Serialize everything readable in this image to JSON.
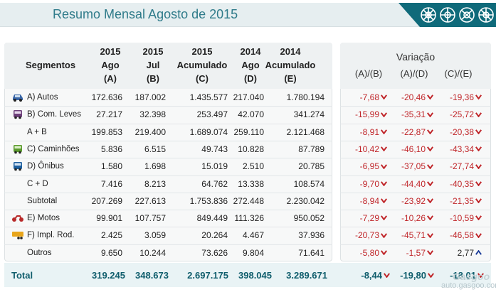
{
  "header": {
    "title": "Resumo Mensal Agosto de 2015"
  },
  "chart_data": {
    "type": "table",
    "title": "Resumo Mensal Agosto de 2015",
    "segment_header": "Segmentos",
    "columns": [
      {
        "l1": "2015",
        "l2": "Ago",
        "l3": "(A)"
      },
      {
        "l1": "2015",
        "l2": "Jul",
        "l3": "(B)"
      },
      {
        "l1": "2015",
        "l2": "Acumulado",
        "l3": "(C)"
      },
      {
        "l1": "2014",
        "l2": "Ago",
        "l3": "(D)"
      },
      {
        "l1": "2014",
        "l2": "Acumulado",
        "l3": "(E)"
      }
    ],
    "variation_title": "Variação",
    "variation_columns": [
      "(A)/(B)",
      "(A)/(D)",
      "(C)/(E)"
    ],
    "rows": [
      {
        "label": "A) Autos",
        "icon": "car-icon",
        "values": [
          "172.636",
          "187.002",
          "1.435.577",
          "217.040",
          "1.780.194"
        ],
        "variation": [
          "-7,68",
          "-20,46",
          "-19,36"
        ],
        "trend": [
          "down",
          "down",
          "down"
        ]
      },
      {
        "label": "B) Com. Leves",
        "icon": "van-icon",
        "values": [
          "27.217",
          "32.398",
          "253.497",
          "42.070",
          "341.274"
        ],
        "variation": [
          "-15,99",
          "-35,31",
          "-25,72"
        ],
        "trend": [
          "down",
          "down",
          "down"
        ]
      },
      {
        "label": "A + B",
        "icon": "",
        "values": [
          "199.853",
          "219.400",
          "1.689.074",
          "259.110",
          "2.121.468"
        ],
        "variation": [
          "-8,91",
          "-22,87",
          "-20,38"
        ],
        "trend": [
          "down",
          "down",
          "down"
        ]
      },
      {
        "label": "C) Caminhões",
        "icon": "truck-icon",
        "values": [
          "5.836",
          "6.515",
          "49.743",
          "10.828",
          "87.789"
        ],
        "variation": [
          "-10,42",
          "-46,10",
          "-43,34"
        ],
        "trend": [
          "down",
          "down",
          "down"
        ]
      },
      {
        "label": "D) Ônibus",
        "icon": "bus-icon",
        "values": [
          "1.580",
          "1.698",
          "15.019",
          "2.510",
          "20.785"
        ],
        "variation": [
          "-6,95",
          "-37,05",
          "-27,74"
        ],
        "trend": [
          "down",
          "down",
          "down"
        ]
      },
      {
        "label": "C + D",
        "icon": "",
        "values": [
          "7.416",
          "8.213",
          "64.762",
          "13.338",
          "108.574"
        ],
        "variation": [
          "-9,70",
          "-44,40",
          "-40,35"
        ],
        "trend": [
          "down",
          "down",
          "down"
        ]
      },
      {
        "label": "Subtotal",
        "icon": "",
        "values": [
          "207.269",
          "227.613",
          "1.753.836",
          "272.448",
          "2.230.042"
        ],
        "variation": [
          "-8,94",
          "-23,92",
          "-21,35"
        ],
        "trend": [
          "down",
          "down",
          "down"
        ]
      },
      {
        "label": "E) Motos",
        "icon": "motorcycle-icon",
        "values": [
          "99.901",
          "107.757",
          "849.449",
          "111.326",
          "950.052"
        ],
        "variation": [
          "-7,29",
          "-10,26",
          "-10,59"
        ],
        "trend": [
          "down",
          "down",
          "down"
        ]
      },
      {
        "label": "F) Impl. Rod.",
        "icon": "trailer-icon",
        "values": [
          "2.425",
          "3.059",
          "20.264",
          "4.467",
          "37.936"
        ],
        "variation": [
          "-20,73",
          "-45,71",
          "-46,58"
        ],
        "trend": [
          "down",
          "down",
          "down"
        ]
      },
      {
        "label": "Outros",
        "icon": "",
        "values": [
          "9.650",
          "10.244",
          "73.626",
          "9.804",
          "71.641"
        ],
        "variation": [
          "-5,80",
          "-1,57",
          "2,77"
        ],
        "trend": [
          "down",
          "down",
          "up"
        ]
      }
    ],
    "total": {
      "label": "Total",
      "values": [
        "319.245",
        "348.673",
        "2.697.175",
        "398.045",
        "3.289.671"
      ],
      "variation": [
        "-8,44",
        "-19,80",
        "-18,01"
      ],
      "trend": [
        "down",
        "down",
        "down"
      ]
    }
  },
  "watermark": {
    "text": "auto.gasgoo.com",
    "logo": "Gasgoo"
  },
  "colors": {
    "accent": "#2f7b8a",
    "negative": "#c0262a",
    "positive_arrow": "#1f3f9a",
    "logo_bg": "#0f6a7a"
  }
}
